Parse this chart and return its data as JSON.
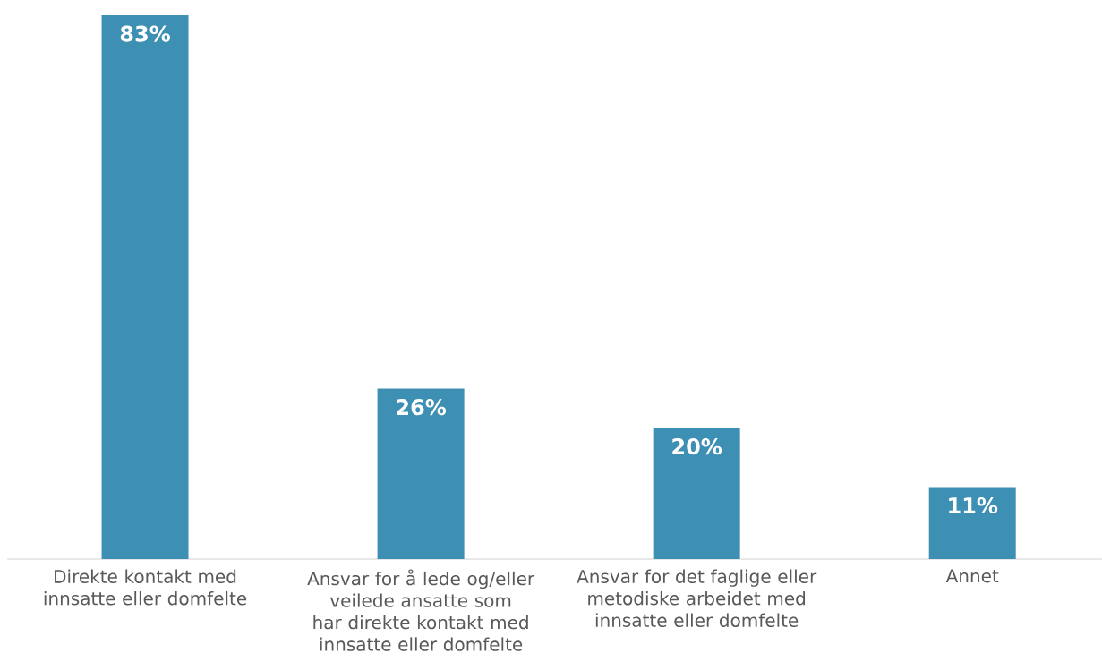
{
  "chart_data": {
    "type": "bar",
    "categories": [
      "Direkte kontakt med innsatte eller domfelte",
      "Ansvar for å lede og/eller veilede ansatte som har direkte kontakt med innsatte eller domfelte",
      "Ansvar for det faglige eller metodiske arbeidet med innsatte eller domfelte",
      "Annet"
    ],
    "values": [
      83,
      26,
      20,
      11
    ],
    "value_labels": [
      "83%",
      "26%",
      "20%",
      "11%"
    ],
    "color": "#3e8fb4"
  }
}
